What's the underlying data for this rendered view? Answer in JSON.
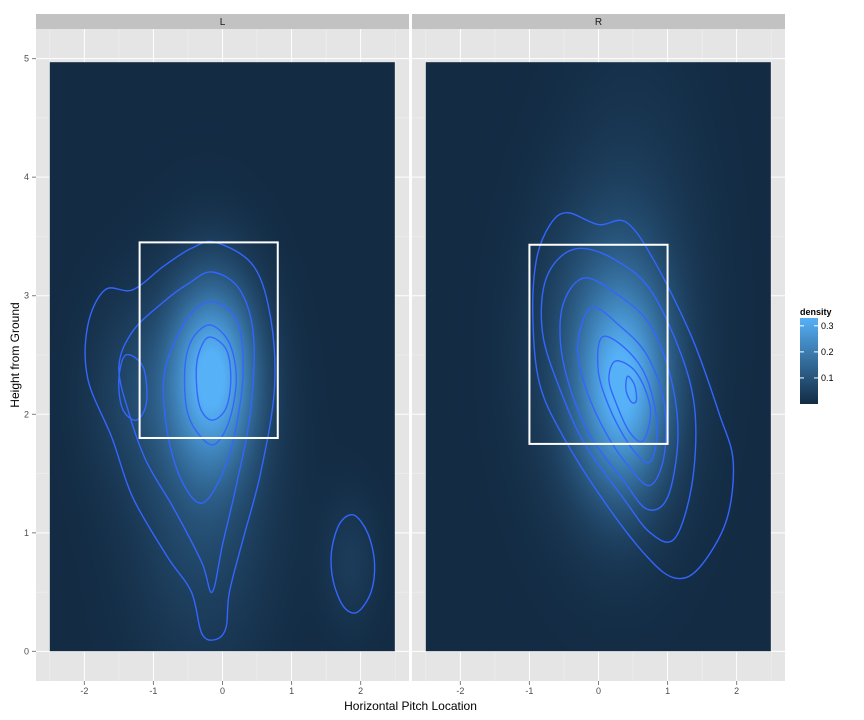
{
  "chart_data": {
    "type": "heatmap",
    "title": "",
    "xlabel": "Horizontal Pitch Location",
    "ylabel": "Height from Ground",
    "xlim": [
      -2.7,
      2.7
    ],
    "ylim": [
      -0.25,
      5.25
    ],
    "x_ticks": [
      -2,
      -1,
      0,
      1,
      2
    ],
    "y_ticks": [
      0,
      1,
      2,
      3,
      4,
      5
    ],
    "grid": true,
    "tile_extent": {
      "x": [
        -2.5,
        2.5
      ],
      "y": [
        0,
        4.97
      ]
    },
    "legend": {
      "title": "density",
      "position": "right",
      "breaks": [
        0.1,
        0.2,
        0.3
      ],
      "range": [
        0,
        0.33
      ],
      "low_color": "#132b43",
      "high_color": "#56b1f7"
    },
    "contour_color": "#3366ff",
    "strike_zone_color": "#ffffff",
    "facets": [
      {
        "label": "L",
        "strike_zone": {
          "x": [
            -1.2,
            0.8
          ],
          "y": [
            1.8,
            3.45
          ]
        },
        "density_peaks": [
          {
            "x": -0.15,
            "y": 2.35,
            "sx": 0.45,
            "sy": 0.55,
            "h": 0.3
          },
          {
            "x": -0.3,
            "y": 1.4,
            "sx": 0.7,
            "sy": 1.0,
            "h": 0.08
          },
          {
            "x": -1.3,
            "y": 2.2,
            "sx": 0.5,
            "sy": 0.55,
            "h": 0.05
          },
          {
            "x": 1.85,
            "y": 0.75,
            "sx": 0.28,
            "sy": 0.38,
            "h": 0.04
          }
        ],
        "contours": [
          [
            [
              -0.1,
              3.45
            ],
            [
              0.45,
              3.25
            ],
            [
              0.7,
              2.8
            ],
            [
              0.75,
              2.2
            ],
            [
              0.55,
              1.5
            ],
            [
              0.3,
              0.95
            ],
            [
              0.1,
              0.5
            ],
            [
              0.05,
              0.2
            ],
            [
              -0.1,
              0.1
            ],
            [
              -0.3,
              0.15
            ],
            [
              -0.45,
              0.5
            ],
            [
              -0.8,
              0.8
            ],
            [
              -1.3,
              1.3
            ],
            [
              -1.6,
              1.8
            ],
            [
              -1.95,
              2.3
            ],
            [
              -1.95,
              2.75
            ],
            [
              -1.7,
              3.05
            ],
            [
              -1.3,
              3.05
            ],
            [
              -0.85,
              3.25
            ],
            [
              -0.45,
              3.4
            ]
          ],
          [
            [
              -0.15,
              3.2
            ],
            [
              0.25,
              3.05
            ],
            [
              0.45,
              2.65
            ],
            [
              0.4,
              2.0
            ],
            [
              0.2,
              1.4
            ],
            [
              0.0,
              0.9
            ],
            [
              -0.15,
              0.5
            ],
            [
              -0.3,
              0.75
            ],
            [
              -0.7,
              1.2
            ],
            [
              -1.1,
              1.6
            ],
            [
              -1.35,
              2.0
            ],
            [
              -1.5,
              2.4
            ],
            [
              -1.3,
              2.7
            ],
            [
              -0.85,
              2.95
            ],
            [
              -0.5,
              3.1
            ]
          ],
          [
            [
              -0.15,
              2.95
            ],
            [
              0.2,
              2.8
            ],
            [
              0.3,
              2.4
            ],
            [
              0.2,
              1.9
            ],
            [
              0.0,
              1.5
            ],
            [
              -0.3,
              1.25
            ],
            [
              -0.6,
              1.45
            ],
            [
              -0.8,
              1.85
            ],
            [
              -0.85,
              2.3
            ],
            [
              -0.7,
              2.6
            ],
            [
              -0.45,
              2.85
            ]
          ],
          [
            [
              -0.15,
              2.75
            ],
            [
              0.1,
              2.6
            ],
            [
              0.2,
              2.3
            ],
            [
              0.1,
              1.95
            ],
            [
              -0.1,
              1.75
            ],
            [
              -0.3,
              1.8
            ],
            [
              -0.5,
              2.0
            ],
            [
              -0.55,
              2.3
            ],
            [
              -0.5,
              2.55
            ],
            [
              -0.35,
              2.7
            ]
          ],
          [
            [
              -0.2,
              2.65
            ],
            [
              0.05,
              2.55
            ],
            [
              0.12,
              2.3
            ],
            [
              0.05,
              2.05
            ],
            [
              -0.15,
              1.95
            ],
            [
              -0.32,
              2.05
            ],
            [
              -0.38,
              2.3
            ],
            [
              -0.35,
              2.5
            ]
          ],
          [
            [
              -1.4,
              2.5
            ],
            [
              -1.15,
              2.4
            ],
            [
              -1.1,
              2.1
            ],
            [
              -1.25,
              1.95
            ],
            [
              -1.45,
              2.05
            ],
            [
              -1.5,
              2.3
            ]
          ],
          [
            [
              1.9,
              1.15
            ],
            [
              2.1,
              1.0
            ],
            [
              2.2,
              0.75
            ],
            [
              2.15,
              0.5
            ],
            [
              1.95,
              0.33
            ],
            [
              1.75,
              0.38
            ],
            [
              1.6,
              0.6
            ],
            [
              1.58,
              0.85
            ],
            [
              1.7,
              1.08
            ]
          ]
        ]
      },
      {
        "label": "R",
        "strike_zone": {
          "x": [
            -1.0,
            1.0
          ],
          "y": [
            1.75,
            3.43
          ]
        },
        "density_peaks": [
          {
            "x": 0.35,
            "y": 2.2,
            "sx": 0.45,
            "sy": 0.6,
            "h": 0.24
          },
          {
            "x": 0.1,
            "y": 2.5,
            "sx": 0.7,
            "sy": 0.9,
            "h": 0.1
          },
          {
            "x": 0.55,
            "y": 3.2,
            "sx": 0.7,
            "sy": 1.3,
            "h": 0.03
          }
        ],
        "contours": [
          [
            [
              -0.45,
              3.7
            ],
            [
              0.0,
              3.6
            ],
            [
              0.4,
              3.62
            ],
            [
              0.8,
              3.3
            ],
            [
              1.35,
              2.65
            ],
            [
              1.75,
              2.0
            ],
            [
              1.95,
              1.6
            ],
            [
              1.85,
              1.1
            ],
            [
              1.45,
              0.7
            ],
            [
              1.1,
              0.62
            ],
            [
              0.7,
              0.8
            ],
            [
              0.1,
              1.25
            ],
            [
              -0.5,
              1.8
            ],
            [
              -0.85,
              2.25
            ],
            [
              -0.95,
              2.8
            ],
            [
              -0.9,
              3.3
            ],
            [
              -0.7,
              3.6
            ]
          ],
          [
            [
              -0.25,
              3.4
            ],
            [
              0.25,
              3.3
            ],
            [
              0.75,
              3.05
            ],
            [
              1.2,
              2.5
            ],
            [
              1.4,
              2.0
            ],
            [
              1.35,
              1.4
            ],
            [
              1.1,
              0.95
            ],
            [
              0.75,
              1.0
            ],
            [
              0.35,
              1.3
            ],
            [
              -0.2,
              1.75
            ],
            [
              -0.55,
              2.2
            ],
            [
              -0.8,
              2.65
            ],
            [
              -0.8,
              3.05
            ],
            [
              -0.6,
              3.3
            ]
          ],
          [
            [
              -0.2,
              3.15
            ],
            [
              0.3,
              3.0
            ],
            [
              0.75,
              2.75
            ],
            [
              1.05,
              2.3
            ],
            [
              1.15,
              1.8
            ],
            [
              1.0,
              1.3
            ],
            [
              0.7,
              1.2
            ],
            [
              0.35,
              1.45
            ],
            [
              -0.1,
              1.8
            ],
            [
              -0.4,
              2.2
            ],
            [
              -0.55,
              2.6
            ],
            [
              -0.5,
              2.95
            ]
          ],
          [
            [
              -0.1,
              2.9
            ],
            [
              0.3,
              2.75
            ],
            [
              0.7,
              2.5
            ],
            [
              0.95,
              2.1
            ],
            [
              0.95,
              1.65
            ],
            [
              0.75,
              1.4
            ],
            [
              0.45,
              1.55
            ],
            [
              0.1,
              1.85
            ],
            [
              -0.2,
              2.25
            ],
            [
              -0.3,
              2.6
            ]
          ],
          [
            [
              0.05,
              2.65
            ],
            [
              0.4,
              2.55
            ],
            [
              0.7,
              2.3
            ],
            [
              0.85,
              1.9
            ],
            [
              0.75,
              1.6
            ],
            [
              0.5,
              1.7
            ],
            [
              0.2,
              2.0
            ],
            [
              0.0,
              2.35
            ]
          ],
          [
            [
              0.25,
              2.45
            ],
            [
              0.55,
              2.35
            ],
            [
              0.75,
              2.05
            ],
            [
              0.65,
              1.78
            ],
            [
              0.45,
              1.85
            ],
            [
              0.25,
              2.1
            ],
            [
              0.15,
              2.3
            ]
          ],
          [
            [
              0.42,
              2.32
            ],
            [
              0.52,
              2.25
            ],
            [
              0.55,
              2.12
            ],
            [
              0.48,
              2.1
            ],
            [
              0.4,
              2.2
            ]
          ]
        ]
      }
    ]
  }
}
